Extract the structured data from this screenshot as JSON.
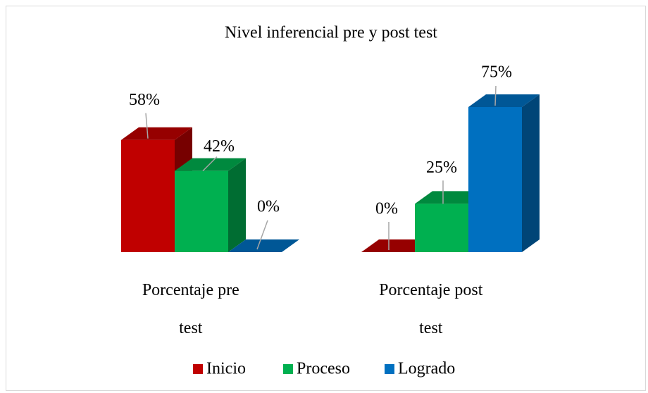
{
  "chart_data": {
    "type": "bar3d",
    "title": "Nivel inferencial pre y post test",
    "categories": [
      "Porcentaje pre test",
      "Porcentaje post test"
    ],
    "series": [
      {
        "name": "Inicio",
        "color": "#c00000",
        "values": [
          58,
          0
        ],
        "value_labels": [
          "58%",
          "0%"
        ]
      },
      {
        "name": "Proceso",
        "color": "#00b050",
        "values": [
          42,
          25
        ],
        "value_labels": [
          "42%",
          "25%"
        ]
      },
      {
        "name": "Logrado",
        "color": "#0070c0",
        "values": [
          0,
          75
        ],
        "value_labels": [
          "0%",
          "75%"
        ]
      }
    ],
    "legend": "bottom"
  }
}
